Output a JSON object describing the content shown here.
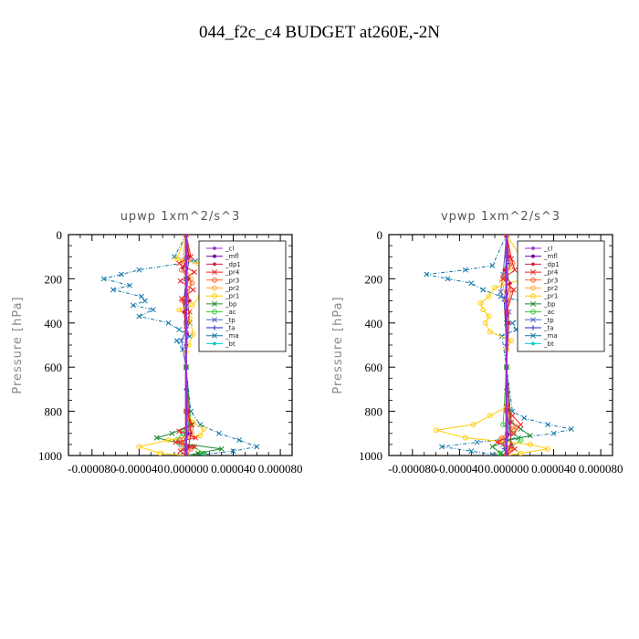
{
  "figure_title": "044_f2c_c4  BUDGET at260E,-2N",
  "chart_data": [
    {
      "type": "line",
      "title": "upwp   1xm^2/s^3",
      "ylabel": "Pressure [hPa]",
      "xlabel": "",
      "xlim": [
        -0.0001,
        9e-05
      ],
      "ylim": [
        1000,
        0
      ],
      "y_ticks": [
        0,
        200,
        400,
        600,
        800,
        1000
      ],
      "y_tick_labels": [
        "0",
        "200",
        "400",
        "600",
        "800",
        "1000"
      ],
      "x_ticks": [
        -8e-05,
        -4e-05,
        0.0,
        4e-05,
        8e-05
      ],
      "x_tick_labels": [
        "-0.000080",
        "-0.000040",
        "0.000000",
        "0.000040",
        "0.000080"
      ],
      "legend_position": "top-right",
      "series": [
        {
          "name": "_cl",
          "color": "#9933cc",
          "marker": "dot",
          "x": [
            0,
            0,
            0,
            0,
            0,
            0,
            0
          ],
          "y": [
            0,
            100,
            300,
            500,
            700,
            900,
            1000
          ]
        },
        {
          "name": "_mfl",
          "color": "#660099",
          "marker": "dot",
          "x": [
            0,
            0,
            0,
            0,
            0,
            0,
            0
          ],
          "y": [
            0,
            100,
            300,
            500,
            700,
            900,
            1000
          ]
        },
        {
          "name": "_dp1",
          "color": "#cc2244",
          "marker": "dot",
          "x": [
            0,
            2e-06,
            -3e-06,
            2e-06,
            0,
            3e-06,
            -2e-06,
            1e-06,
            0,
            2e-06,
            4e-06,
            2e-06,
            0
          ],
          "y": [
            0,
            100,
            150,
            200,
            250,
            300,
            350,
            450,
            600,
            800,
            900,
            960,
            1000
          ]
        },
        {
          "name": "_pr4",
          "color": "#ee2222",
          "marker": "x",
          "x": [
            0,
            4e-06,
            -6e-06,
            7e-06,
            -5e-06,
            6e-06,
            -4e-06,
            3e-06,
            0,
            0,
            5e-06,
            -6e-06,
            8e-06,
            -9e-06,
            7e-06,
            -5e-06,
            0
          ],
          "y": [
            0,
            100,
            130,
            170,
            210,
            250,
            290,
            350,
            430,
            800,
            860,
            890,
            920,
            940,
            960,
            980,
            1000
          ]
        },
        {
          "name": "_pr3",
          "color": "#ff6633",
          "marker": "o",
          "x": [
            0,
            3e-06,
            -4e-06,
            5e-06,
            -3e-06,
            0,
            0,
            4e-06,
            -5e-06,
            4e-06,
            0
          ],
          "y": [
            0,
            110,
            160,
            220,
            300,
            400,
            800,
            880,
            930,
            970,
            1000
          ]
        },
        {
          "name": "_pr2",
          "color": "#ffaa33",
          "marker": "o",
          "x": [
            0,
            -3e-06,
            4e-06,
            0,
            0,
            5e-06,
            -4e-06,
            0
          ],
          "y": [
            0,
            120,
            200,
            350,
            800,
            900,
            960,
            1000
          ]
        },
        {
          "name": "_pr1",
          "color": "#ffcc00",
          "marker": "o",
          "x": [
            0,
            -8e-06,
            1e-05,
            2.5e-05,
            2.6e-05,
            1.5e-05,
            2.8e-05,
            1.2e-05,
            5e-06,
            -6e-06,
            3e-06,
            6e-06,
            2e-06,
            0,
            0,
            6e-06,
            1.5e-05,
            1.2e-05,
            -1.5e-05,
            -4e-05,
            -2.2e-05,
            0
          ],
          "y": [
            0,
            110,
            130,
            150,
            170,
            200,
            240,
            280,
            320,
            340,
            380,
            450,
            500,
            530,
            800,
            850,
            880,
            910,
            930,
            960,
            990,
            1000
          ]
        },
        {
          "name": "_bp",
          "color": "#228833",
          "marker": "x",
          "x": [
            0,
            0,
            0,
            0,
            0,
            4e-06,
            -1.2e-05,
            -2.5e-05,
            -5e-06,
            3e-05,
            1e-05,
            0
          ],
          "y": [
            0,
            200,
            300,
            400,
            600,
            860,
            900,
            920,
            945,
            970,
            990,
            1000
          ]
        },
        {
          "name": "_ac",
          "color": "#33cc33",
          "marker": "o",
          "x": [
            0,
            0,
            0,
            2e-06,
            -3e-06,
            -8e-06,
            6e-06,
            1.5e-05,
            0
          ],
          "y": [
            0,
            300,
            600,
            850,
            900,
            930,
            960,
            990,
            1000
          ]
        },
        {
          "name": "_tp",
          "color": "#5566cc",
          "marker": "x",
          "x": [
            0,
            0,
            3e-06,
            -4e-06,
            0,
            2e-06,
            -3e-06,
            0
          ],
          "y": [
            0,
            200,
            400,
            480,
            600,
            880,
            950,
            1000
          ]
        },
        {
          "name": "_ta",
          "color": "#2222cc",
          "marker": "plus",
          "x": [
            0,
            2e-06,
            -2e-06,
            0,
            0,
            2e-06,
            -2e-06,
            0
          ],
          "y": [
            0,
            120,
            300,
            500,
            700,
            900,
            970,
            1000
          ]
        },
        {
          "name": "_ma",
          "color": "#1177aa",
          "marker": "x",
          "x": [
            0,
            -1e-05,
            8e-06,
            -4e-05,
            -5.5e-05,
            -7e-05,
            -4.8e-05,
            -6.2e-05,
            -3.8e-05,
            -3.5e-05,
            -4.5e-05,
            -2.8e-05,
            -4e-05,
            -1.5e-05,
            -6e-06,
            3e-06,
            -8e-06,
            -3e-06,
            0,
            4e-06,
            1.2e-05,
            2.8e-05,
            4.5e-05,
            6e-05,
            4e-05,
            1.5e-05,
            -5e-06,
            0
          ],
          "y": [
            0,
            100,
            120,
            160,
            180,
            200,
            230,
            250,
            280,
            300,
            320,
            340,
            370,
            400,
            430,
            460,
            480,
            520,
            600,
            800,
            860,
            900,
            930,
            960,
            980,
            995,
            1000,
            1000
          ]
        },
        {
          "name": "_bt",
          "color": "#00cccc",
          "marker": "dot",
          "x": [
            0,
            0,
            0,
            0,
            0,
            0
          ],
          "y": [
            0,
            200,
            400,
            600,
            800,
            1000
          ]
        }
      ]
    },
    {
      "type": "line",
      "title": "vpwp   1xm^2/s^3",
      "ylabel": "Pressure [hPa]",
      "xlabel": "",
      "xlim": [
        -0.0001,
        9e-05
      ],
      "ylim": [
        1000,
        0
      ],
      "y_ticks": [
        0,
        200,
        400,
        600,
        800,
        1000
      ],
      "y_tick_labels": [
        "0",
        "200",
        "400",
        "600",
        "800",
        "1000"
      ],
      "x_ticks": [
        -8e-05,
        -4e-05,
        0.0,
        4e-05,
        8e-05
      ],
      "x_tick_labels": [
        "-0.000080",
        "-0.000040",
        "0.000000",
        "0.000040",
        "0.000080"
      ],
      "legend_position": "top-right",
      "series": [
        {
          "name": "_cl",
          "color": "#9933cc",
          "marker": "dot",
          "x": [
            0,
            0,
            0,
            0,
            0,
            0,
            0
          ],
          "y": [
            0,
            100,
            300,
            500,
            700,
            900,
            1000
          ]
        },
        {
          "name": "_mfl",
          "color": "#660099",
          "marker": "dot",
          "x": [
            0,
            0,
            0,
            0,
            0,
            0,
            0
          ],
          "y": [
            0,
            100,
            300,
            500,
            700,
            900,
            1000
          ]
        },
        {
          "name": "_dp1",
          "color": "#cc2244",
          "marker": "dot",
          "x": [
            0,
            2e-06,
            -2e-06,
            3e-06,
            0,
            2e-06,
            0,
            3e-06,
            4e-06,
            0
          ],
          "y": [
            0,
            100,
            160,
            220,
            300,
            400,
            600,
            850,
            950,
            1000
          ]
        },
        {
          "name": "_pr4",
          "color": "#ee2222",
          "marker": "x",
          "x": [
            0,
            4e-06,
            7e-06,
            -3e-06,
            6e-06,
            0,
            0,
            5e-06,
            1.2e-05,
            6e-06,
            -8e-06,
            7e-06,
            0
          ],
          "y": [
            0,
            110,
            160,
            200,
            250,
            350,
            780,
            820,
            860,
            900,
            940,
            970,
            1000
          ]
        },
        {
          "name": "_pr3",
          "color": "#ff6633",
          "marker": "o",
          "x": [
            0,
            5e-06,
            -3e-06,
            4e-06,
            0,
            0,
            8e-06,
            -4e-06,
            3e-06,
            0
          ],
          "y": [
            0,
            130,
            190,
            250,
            350,
            800,
            870,
            920,
            970,
            1000
          ]
        },
        {
          "name": "_pr2",
          "color": "#ffaa33",
          "marker": "o",
          "x": [
            0,
            3e-06,
            -4e-06,
            0,
            0,
            5e-06,
            -6e-06,
            2e-06,
            0
          ],
          "y": [
            0,
            150,
            210,
            300,
            800,
            880,
            930,
            980,
            1000
          ]
        },
        {
          "name": "_pr1",
          "color": "#ffcc00",
          "marker": "o",
          "x": [
            0,
            2e-05,
            1.5e-05,
            -1e-05,
            -1.5e-05,
            -2.2e-05,
            -2e-05,
            -1.5e-05,
            -1.8e-05,
            -1.4e-05,
            4e-06,
            0,
            0,
            -1.4e-05,
            -2.8e-05,
            -6e-05,
            -3.5e-05,
            2e-05,
            3.5e-05,
            1.2e-05,
            0
          ],
          "y": [
            0,
            170,
            200,
            240,
            280,
            310,
            340,
            370,
            400,
            440,
            480,
            520,
            780,
            820,
            860,
            885,
            920,
            950,
            970,
            990,
            1000
          ]
        },
        {
          "name": "_bp",
          "color": "#228833",
          "marker": "x",
          "x": [
            0,
            0,
            0,
            0,
            4e-06,
            1.2e-05,
            2e-05,
            2e-06,
            -1.2e-05,
            -5e-06,
            0
          ],
          "y": [
            0,
            200,
            400,
            600,
            850,
            880,
            910,
            930,
            960,
            990,
            1000
          ]
        },
        {
          "name": "_ac",
          "color": "#33cc33",
          "marker": "o",
          "x": [
            0,
            0,
            0,
            -3e-06,
            6e-06,
            1.2e-05,
            4e-06,
            -6e-06,
            0
          ],
          "y": [
            0,
            300,
            600,
            860,
            900,
            930,
            960,
            990,
            1000
          ]
        },
        {
          "name": "_tp",
          "color": "#5566cc",
          "marker": "x",
          "x": [
            0,
            -3e-06,
            -5e-06,
            2e-06,
            0,
            3e-06,
            -3e-06,
            0
          ],
          "y": [
            0,
            180,
            260,
            350,
            600,
            880,
            950,
            1000
          ]
        },
        {
          "name": "_ta",
          "color": "#2222cc",
          "marker": "plus",
          "x": [
            0,
            2e-06,
            -2e-06,
            0,
            0,
            2e-06,
            -2e-06,
            0
          ],
          "y": [
            0,
            130,
            300,
            500,
            700,
            900,
            970,
            1000
          ]
        },
        {
          "name": "_ma",
          "color": "#1177aa",
          "marker": "x",
          "x": [
            0,
            -1.2e-05,
            -3.5e-05,
            -6.8e-05,
            -5e-05,
            -3e-05,
            -2e-05,
            -5e-06,
            1.2e-05,
            2.8e-05,
            1.8e-05,
            5e-06,
            8e-06,
            -4e-06,
            0,
            5e-06,
            1.5e-05,
            3.5e-05,
            5.5e-05,
            4e-05,
            1e-05,
            -2.5e-05,
            -5.5e-05,
            -3e-05,
            -1.2e-05,
            0
          ],
          "y": [
            0,
            140,
            160,
            180,
            200,
            220,
            250,
            280,
            300,
            320,
            350,
            400,
            430,
            460,
            600,
            800,
            830,
            860,
            880,
            900,
            920,
            940,
            960,
            980,
            995,
            1000
          ]
        },
        {
          "name": "_bt",
          "color": "#00cccc",
          "marker": "dot",
          "x": [
            0,
            0,
            0,
            0,
            0,
            0
          ],
          "y": [
            0,
            200,
            400,
            600,
            800,
            1000
          ]
        }
      ]
    }
  ]
}
